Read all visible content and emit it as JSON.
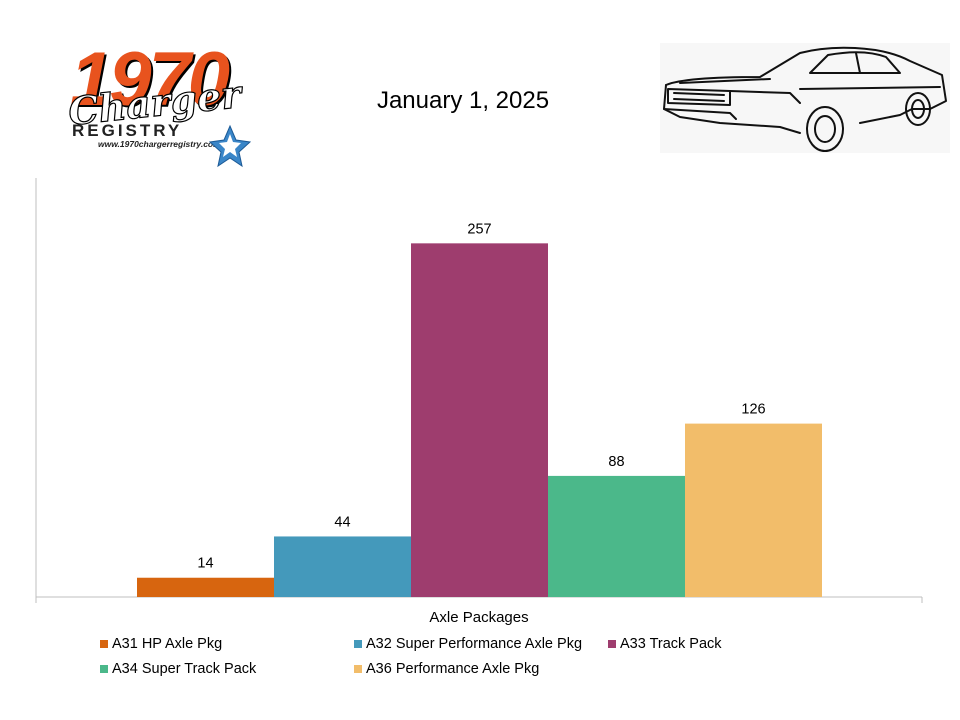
{
  "header": {
    "logo": {
      "digits": "1970",
      "script": "Charger",
      "registry": "REGISTRY",
      "url": "www.1970chargerregistry.com/"
    },
    "date": "January 1, 2025"
  },
  "chart_data": {
    "type": "bar",
    "categories": [
      "Axle Packages"
    ],
    "xlabel": "Axle Packages",
    "ylabel": "",
    "ylim": [
      0,
      300
    ],
    "grid": false,
    "legend_position": "bottom",
    "series": [
      {
        "name": "A31 HP Axle Pkg",
        "values": [
          14
        ],
        "color": "#d7650f"
      },
      {
        "name": "A32 Super Performance Axle Pkg",
        "values": [
          44
        ],
        "color": "#4499bb"
      },
      {
        "name": "A33 Track Pack",
        "values": [
          257
        ],
        "color": "#9e3d6e"
      },
      {
        "name": "A34 Super Track Pack",
        "values": [
          88
        ],
        "color": "#4bb88a"
      },
      {
        "name": "A36 Performance Axle Pkg",
        "values": [
          126
        ],
        "color": "#f2bd6a"
      }
    ]
  }
}
